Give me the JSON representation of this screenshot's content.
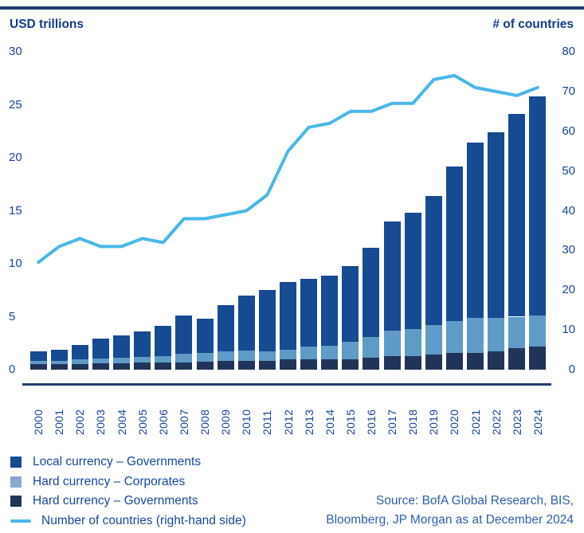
{
  "header": {
    "left_title": "USD trillions",
    "right_title": "# of countries"
  },
  "chart_data": {
    "type": "bar",
    "subtype": "stacked-bars-with-line-overlay",
    "categories": [
      "2000",
      "2001",
      "2002",
      "2003",
      "2004",
      "2005",
      "2006",
      "2007",
      "2008",
      "2009",
      "2010",
      "2011",
      "2012",
      "2013",
      "2014",
      "2015",
      "2016",
      "2017",
      "2018",
      "2019",
      "2020",
      "2021",
      "2022",
      "2023",
      "2024"
    ],
    "series": [
      {
        "name": "Hard currency – Governments",
        "color": "#20345a",
        "values": [
          0.5,
          0.5,
          0.55,
          0.6,
          0.6,
          0.65,
          0.65,
          0.7,
          0.75,
          0.8,
          0.85,
          0.85,
          0.95,
          1.0,
          1.0,
          1.0,
          1.15,
          1.25,
          1.3,
          1.45,
          1.6,
          1.6,
          1.7,
          2.0,
          2.2
        ]
      },
      {
        "name": "Hard currency – Corporates",
        "color": "#5e9bc6",
        "values": [
          0.3,
          0.35,
          0.4,
          0.45,
          0.5,
          0.55,
          0.65,
          0.8,
          0.8,
          0.9,
          0.95,
          0.9,
          0.95,
          1.2,
          1.25,
          1.6,
          1.95,
          2.45,
          2.5,
          2.75,
          3.0,
          3.3,
          3.2,
          3.0,
          2.9
        ]
      },
      {
        "name": "Local currency – Governments",
        "color": "#164a91",
        "values": [
          0.9,
          1.05,
          1.35,
          1.85,
          2.1,
          2.4,
          2.8,
          3.6,
          3.25,
          4.4,
          5.2,
          5.75,
          6.4,
          6.4,
          6.65,
          7.2,
          8.4,
          10.3,
          11.0,
          12.2,
          14.6,
          16.5,
          17.5,
          19.1,
          20.7
        ]
      }
    ],
    "line_series": {
      "name": "Number of countries (right-hand side)",
      "color": "#49b8e8",
      "axis": "right",
      "values": [
        27,
        31,
        33,
        31,
        31,
        33,
        32,
        38,
        38,
        39,
        40,
        44,
        55,
        61,
        62,
        65,
        65,
        67,
        67,
        73,
        74,
        71,
        70,
        69,
        71
      ]
    },
    "left_axis": {
      "title": "USD trillions",
      "range": [
        0,
        30
      ],
      "ticks": [
        0,
        5,
        10,
        15,
        20,
        25,
        30
      ]
    },
    "right_axis": {
      "title": "# of countries",
      "range": [
        0,
        80
      ],
      "ticks": [
        0,
        10,
        20,
        30,
        40,
        50,
        60,
        70,
        80
      ]
    },
    "grid": false,
    "legend_position": "bottom-left"
  },
  "legend": {
    "items": [
      {
        "label": "Local currency – Governments",
        "type": "square",
        "color": "#164a91"
      },
      {
        "label": "Hard currency – Corporates",
        "type": "square",
        "color": "#8aa8cd"
      },
      {
        "label": "Hard currency – Governments",
        "type": "square",
        "color": "#223457"
      },
      {
        "label": "Number of countries (right-hand side)",
        "type": "line",
        "color": "#49b8e8"
      }
    ]
  },
  "source": {
    "line1": "Source: BofA Global Research, BIS,",
    "line2": "Bloomberg, JP Morgan as at December 2024"
  },
  "colors": {
    "top_rule": "#1c3a6d",
    "axis_line": "#203e6e",
    "header_text": "#0e3c8c",
    "tick_text": "#16429a",
    "legend_text": "#16489e",
    "source_text": "#2d5fae"
  }
}
